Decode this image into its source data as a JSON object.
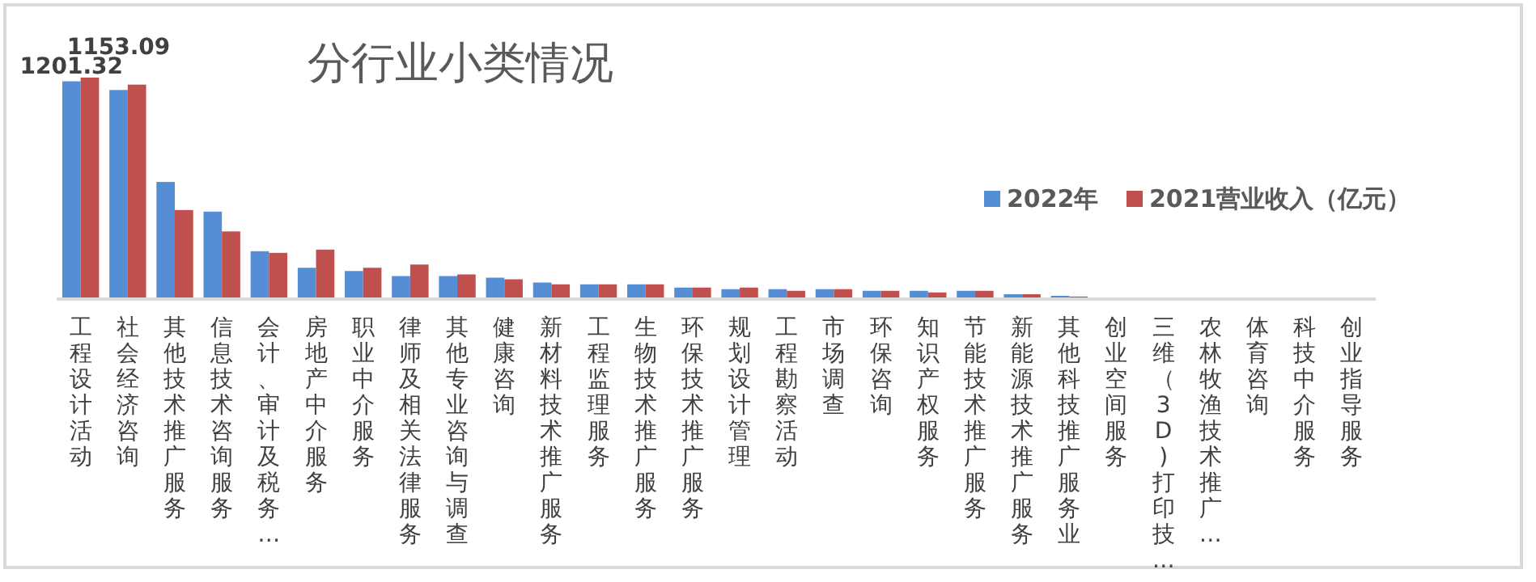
{
  "chart_data": {
    "type": "bar",
    "title": "分行业小类情况",
    "categories": [
      "工程设计活动",
      "社会经济咨询",
      "其他技术推广服务",
      "信息技术咨询服务",
      "会计、审计及税务…",
      "房地产中介服务",
      "职业中介服务",
      "律师及相关法律服务",
      "其他专业咨询与调查",
      "健康咨询",
      "新材料技术推广服务",
      "工程监理服务",
      "生物技术推广服务",
      "环保技术推广服务",
      "规划设计管理",
      "工程勘察活动",
      "市场调查",
      "环保咨询",
      "知识产权服务",
      "节能技术推广服务",
      "新能源技术推广服务",
      "其他科技推广服务业",
      "创业空间服务",
      "三维（3D)打印技…",
      "农林牧渔技术推广…",
      "体育咨询",
      "科技中介服务",
      "创业指导服务"
    ],
    "series": [
      {
        "name": "2022年",
        "color": "#558ed5",
        "values": [
          1201.32,
          1153.09,
          642,
          477,
          257,
          165,
          147,
          119,
          119,
          110,
          83,
          73,
          73,
          55,
          46,
          46,
          46,
          37,
          37,
          37,
          18,
          9,
          0,
          0,
          0,
          0,
          0,
          0
        ],
        "value_labels": [
          "1201.32",
          "1153.09",
          null,
          null,
          null,
          null,
          null,
          null,
          null,
          null,
          null,
          null,
          null,
          null,
          null,
          null,
          null,
          null,
          null,
          null,
          null,
          null,
          null,
          null,
          null,
          null,
          null,
          null
        ]
      },
      {
        "name": "2021营业收入（亿元）",
        "color": "#c0504d",
        "values": [
          1222,
          1183,
          486,
          367,
          248,
          266,
          165,
          183,
          128,
          101,
          73,
          73,
          73,
          55,
          55,
          37,
          46,
          37,
          28,
          37,
          18,
          5,
          0,
          0,
          0,
          0,
          0,
          0
        ]
      }
    ],
    "legend": "right"
  }
}
